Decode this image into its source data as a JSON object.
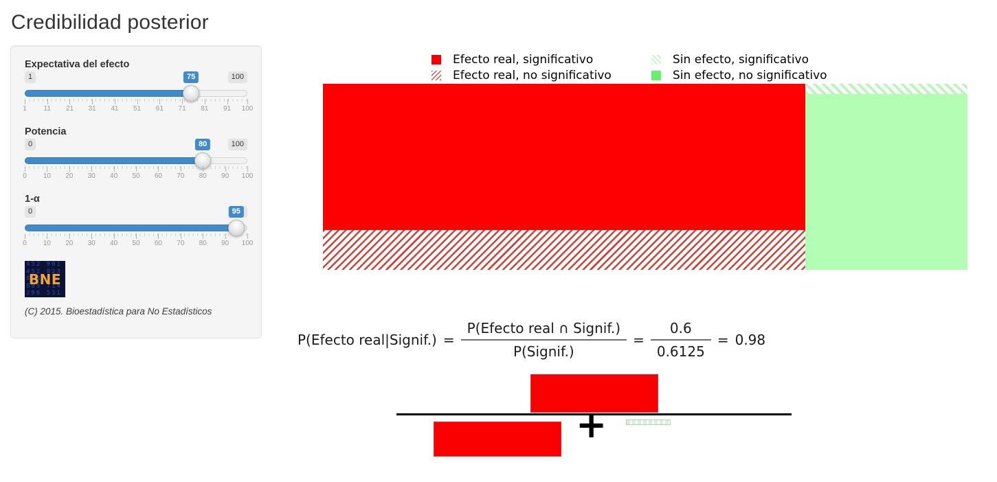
{
  "window": {
    "title": "Credibilidad posterior"
  },
  "sidebar": {
    "sliders": [
      {
        "label": "Expectativa del efecto",
        "min": "1",
        "max": "100",
        "value": "75",
        "ticks": [
          "1",
          "11",
          "21",
          "31",
          "41",
          "51",
          "61",
          "71",
          "81",
          "91",
          "100"
        ]
      },
      {
        "label": "Potencia",
        "min": "0",
        "max": "100",
        "value": "80",
        "ticks": [
          "0",
          "10",
          "20",
          "30",
          "40",
          "50",
          "60",
          "70",
          "80",
          "90",
          "100"
        ]
      },
      {
        "label": "1-α",
        "min": "0",
        "max": "100",
        "value": "95",
        "ticks": [
          "0",
          "10",
          "20",
          "30",
          "40",
          "50",
          "60",
          "70",
          "80",
          "90",
          "100"
        ]
      }
    ],
    "logo": {
      "text": "BNE",
      "digit_rows": [
        "432 901",
        "452 023",
        "8 4 71",
        "805 714",
        "296 531"
      ]
    },
    "copyright": "(C) 2015. Bioestadística para No Estadísticos"
  },
  "legend": {
    "items": [
      {
        "label": "Efecto real, significativo",
        "swatch": "red-solid"
      },
      {
        "label": "Sin efecto, significativo",
        "swatch": "green-hatch"
      },
      {
        "label": "Efecto real, no significativo",
        "swatch": "red-hatch"
      },
      {
        "label": "Sin efecto, no significativo",
        "swatch": "green-solid"
      }
    ]
  },
  "chart_data": {
    "type": "area",
    "subtype": "mosaic-joint-probability",
    "x_split": {
      "Efecto real": 0.75,
      "Sin efecto": 0.25
    },
    "regions": [
      {
        "name": "Efecto real, significativo",
        "probability": 0.6,
        "pattern": "solid",
        "color": "#ff0000"
      },
      {
        "name": "Efecto real, no significativo",
        "probability": 0.15,
        "pattern": "hatch-forward",
        "color": "#cf4135"
      },
      {
        "name": "Sin efecto, significativo",
        "probability": 0.0125,
        "pattern": "hatch-back",
        "color": "#bdf4bd"
      },
      {
        "name": "Sin efecto, no significativo",
        "probability": 0.2375,
        "pattern": "solid",
        "color": "#b3fcb3"
      }
    ],
    "legend_position": "top",
    "grid": false
  },
  "formula": {
    "lhs": "P(Efecto real|Signif.)",
    "equals": "=",
    "frac1_num": "P(Efecto real ∩ Signif.)",
    "frac1_den": "P(Signif.)",
    "frac2_num": "0.6",
    "frac2_den": "0.6125",
    "result": "0.98",
    "plus": "+"
  },
  "colors": {
    "accent_blue": "#428bca",
    "red": "#ff0000",
    "green_solid_area": "#b3fcb3",
    "green_legend": "#66f06e",
    "panel_bg": "#f5f5f5",
    "panel_border": "#e3e3e3"
  }
}
